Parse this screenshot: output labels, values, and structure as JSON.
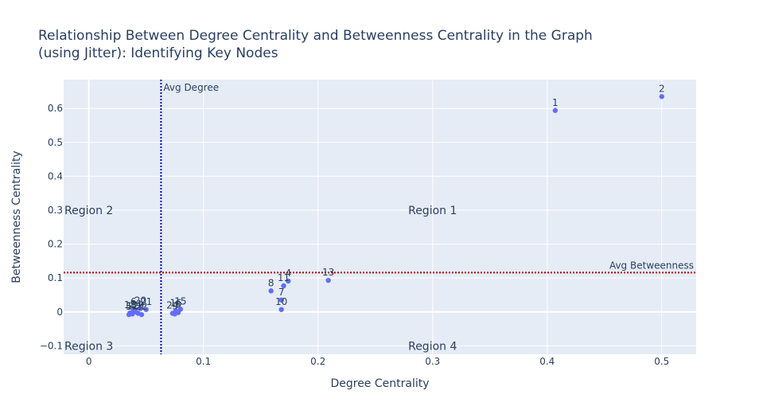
{
  "chart_data": {
    "type": "scatter",
    "title_line1": "Relationship Between Degree Centrality and Betweenness Centrality in the Graph",
    "title_line2": "(using Jitter): Identifying Key Nodes",
    "xlabel": "Degree Centrality",
    "ylabel": "Betweenness Centrality",
    "xlim": [
      -0.022,
      0.53
    ],
    "ylim": [
      -0.125,
      0.685
    ],
    "xticks": [
      0,
      0.1,
      0.2,
      0.3,
      0.4,
      0.5
    ],
    "xtick_labels": [
      "0",
      "0.1",
      "0.2",
      "0.3",
      "0.4",
      "0.5"
    ],
    "yticks": [
      -0.1,
      0,
      0.1,
      0.2,
      0.3,
      0.4,
      0.5,
      0.6
    ],
    "ytick_labels": [
      "−0.1",
      "0",
      "0.1",
      "0.2",
      "0.3",
      "0.4",
      "0.5",
      "0.6"
    ],
    "grid": true,
    "avg_degree": 0.063,
    "avg_degree_label": "Avg Degree",
    "avg_betweenness": 0.116,
    "avg_betweenness_label": "Avg Betweenness",
    "marker_color": "#636efa",
    "avg_degree_color": "#0000b3",
    "avg_betweenness_color": "#b30000",
    "regions": [
      {
        "label": "Region 1",
        "x": 0.3,
        "y": 0.3
      },
      {
        "label": "Region 2",
        "x": 0.0,
        "y": 0.3
      },
      {
        "label": "Region 3",
        "x": 0.0,
        "y": -0.1
      },
      {
        "label": "Region 4",
        "x": 0.3,
        "y": -0.1
      }
    ],
    "points": [
      {
        "label": "1",
        "x": 0.407,
        "y": 0.594
      },
      {
        "label": "2",
        "x": 0.5,
        "y": 0.635
      },
      {
        "label": "13",
        "x": 0.209,
        "y": 0.093
      },
      {
        "label": "4",
        "x": 0.174,
        "y": 0.091
      },
      {
        "label": "11",
        "x": 0.17,
        "y": 0.077
      },
      {
        "label": "8",
        "x": 0.159,
        "y": 0.062
      },
      {
        "label": "7",
        "x": 0.168,
        "y": 0.035
      },
      {
        "label": "10",
        "x": 0.168,
        "y": 0.007
      },
      {
        "label": "15",
        "x": 0.08,
        "y": 0.008
      },
      {
        "label": "16",
        "x": 0.076,
        "y": 0.003
      },
      {
        "label": "24",
        "x": 0.073,
        "y": -0.004
      },
      {
        "label": "9",
        "x": 0.075,
        "y": -0.006
      },
      {
        "label": "3",
        "x": 0.078,
        "y": -0.002
      },
      {
        "label": "21",
        "x": 0.05,
        "y": 0.007
      },
      {
        "label": "20",
        "x": 0.045,
        "y": 0.01
      },
      {
        "label": "6",
        "x": 0.039,
        "y": 0.006
      },
      {
        "label": "14",
        "x": 0.041,
        "y": 0.0
      },
      {
        "label": "18",
        "x": 0.036,
        "y": -0.003
      },
      {
        "label": "12",
        "x": 0.038,
        "y": -0.006
      },
      {
        "label": "19",
        "x": 0.043,
        "y": -0.004
      },
      {
        "label": "22",
        "x": 0.046,
        "y": -0.008
      },
      {
        "label": "5",
        "x": 0.035,
        "y": -0.008
      }
    ]
  }
}
